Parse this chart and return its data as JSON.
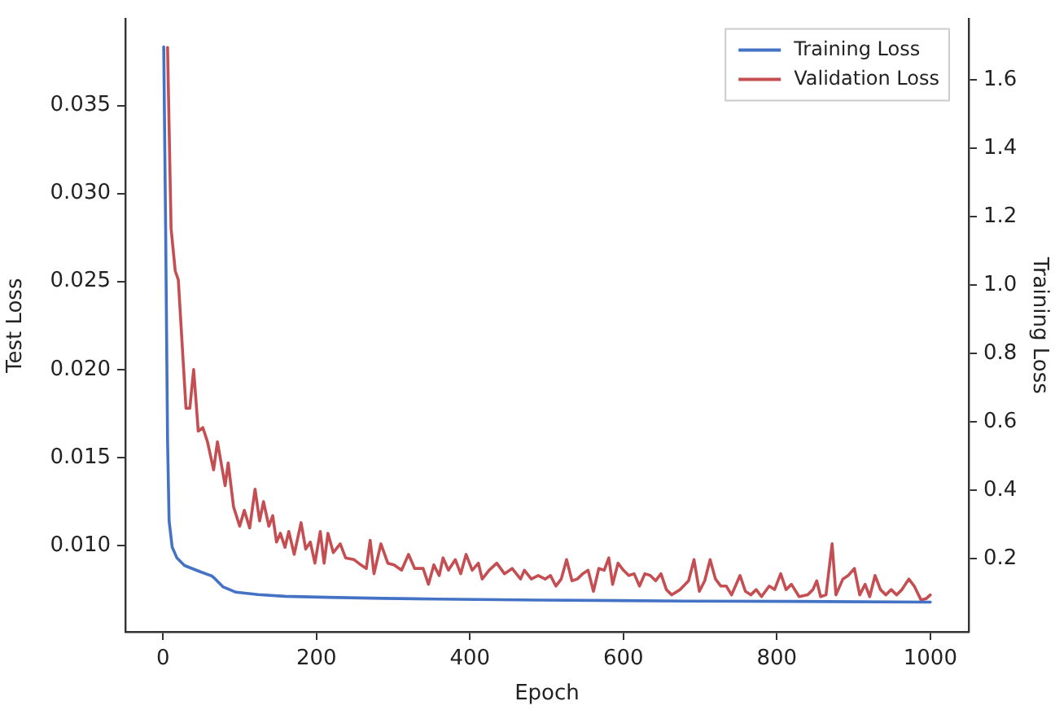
{
  "chart_data": {
    "type": "line",
    "xlabel": "Epoch",
    "ylabel": "Test Loss",
    "y2label": "Training Loss",
    "xlim": [
      -49,
      1050
    ],
    "xticks": [
      0,
      200,
      400,
      600,
      800,
      1000
    ],
    "ylim": [
      0.0051,
      0.0399
    ],
    "yticks": [
      {
        "value": 0.01,
        "label": "0.010"
      },
      0.015,
      {
        "value": 0.02,
        "label": "0.020"
      },
      0.025,
      {
        "value": 0.03,
        "label": "0.030"
      },
      0.035
    ],
    "y2lim": [
      -0.014,
      1.778
    ],
    "y2ticks": [
      0.2,
      0.4,
      0.6,
      0.8,
      {
        "value": 1,
        "label": "1.0"
      },
      1.2,
      1.4,
      1.6
    ],
    "grid": false,
    "legend": "top right",
    "marker": "none",
    "line_style": "solid",
    "series": [
      {
        "name": "Training Loss",
        "color": "#4472c4",
        "axis": "y2",
        "x": [
          1,
          3.5,
          6,
          8,
          12,
          18,
          28,
          46,
          64,
          68,
          78,
          95,
          124,
          159,
          215,
          286,
          356,
          490,
          681,
          822,
          1000
        ],
        "values": [
          1.697,
          1.163,
          0.544,
          0.311,
          0.234,
          0.203,
          0.18,
          0.164,
          0.149,
          0.141,
          0.118,
          0.102,
          0.095,
          0.09,
          0.087,
          0.084,
          0.082,
          0.079,
          0.076,
          0.075,
          0.073
        ]
      },
      {
        "name": "Validation Loss",
        "color": "#c44e52",
        "axis": "y",
        "x": [
          6,
          10.6,
          16,
          20,
          26,
          30,
          35,
          40,
          46,
          52,
          58,
          66,
          71,
          81,
          85,
          92,
          100,
          106,
          113,
          120,
          126,
          131,
          138,
          143,
          148,
          153,
          159,
          164,
          171,
          180,
          186,
          192,
          198,
          205,
          210,
          215,
          222,
          231,
          238,
          249,
          258,
          265,
          270,
          275,
          284,
          293,
          301,
          311,
          320,
          328,
          339,
          346,
          353,
          360,
          365,
          372,
          381,
          388,
          395,
          403,
          411,
          416,
          425,
          435,
          445,
          455,
          466,
          471,
          480,
          489,
          498,
          505,
          512,
          519,
          526,
          533,
          540,
          547,
          554,
          561,
          568,
          575,
          581,
          586,
          593,
          600,
          607,
          614,
          621,
          628,
          635,
          642,
          649,
          656,
          663,
          674,
          685,
          692,
          699,
          706,
          713,
          720,
          727,
          734,
          741,
          752,
          759,
          766,
          773,
          780,
          790,
          797,
          805,
          812,
          819,
          829,
          840,
          847,
          852,
          857,
          864,
          872,
          877,
          886,
          893,
          901,
          908,
          915,
          921,
          928,
          935,
          942,
          949,
          956,
          963,
          972,
          979,
          988,
          995,
          1000
        ],
        "values": [
          0.0383,
          0.028,
          0.0256,
          0.0251,
          0.0207,
          0.0178,
          0.0178,
          0.02,
          0.0165,
          0.0167,
          0.0159,
          0.0143,
          0.0159,
          0.0134,
          0.0147,
          0.0122,
          0.0111,
          0.012,
          0.011,
          0.0132,
          0.0114,
          0.0125,
          0.0111,
          0.0117,
          0.0102,
          0.0107,
          0.0099,
          0.0108,
          0.0095,
          0.0113,
          0.0098,
          0.0102,
          0.009,
          0.0108,
          0.009,
          0.0107,
          0.0096,
          0.0101,
          0.0093,
          0.0092,
          0.0089,
          0.0087,
          0.0103,
          0.0084,
          0.0101,
          0.009,
          0.0089,
          0.0086,
          0.0095,
          0.0087,
          0.0087,
          0.0078,
          0.0089,
          0.0083,
          0.0093,
          0.0086,
          0.0092,
          0.0084,
          0.0095,
          0.0086,
          0.009,
          0.0081,
          0.0086,
          0.009,
          0.0084,
          0.0087,
          0.0081,
          0.0086,
          0.0081,
          0.0083,
          0.0081,
          0.0083,
          0.0077,
          0.0081,
          0.0092,
          0.008,
          0.0081,
          0.0084,
          0.0086,
          0.0074,
          0.0087,
          0.0086,
          0.0093,
          0.0078,
          0.009,
          0.0086,
          0.0083,
          0.0084,
          0.0077,
          0.0084,
          0.0083,
          0.008,
          0.0084,
          0.0075,
          0.0072,
          0.0075,
          0.008,
          0.0092,
          0.0074,
          0.008,
          0.0092,
          0.0081,
          0.0077,
          0.0077,
          0.0072,
          0.0083,
          0.0074,
          0.0072,
          0.0075,
          0.0071,
          0.0077,
          0.0075,
          0.0084,
          0.0075,
          0.0078,
          0.0071,
          0.0072,
          0.0075,
          0.008,
          0.0071,
          0.0072,
          0.0101,
          0.0072,
          0.0081,
          0.0083,
          0.0087,
          0.0072,
          0.0078,
          0.0071,
          0.0083,
          0.0075,
          0.0072,
          0.0075,
          0.0072,
          0.0075,
          0.0081,
          0.0077,
          0.0069,
          0.007,
          0.0072
        ]
      }
    ]
  }
}
